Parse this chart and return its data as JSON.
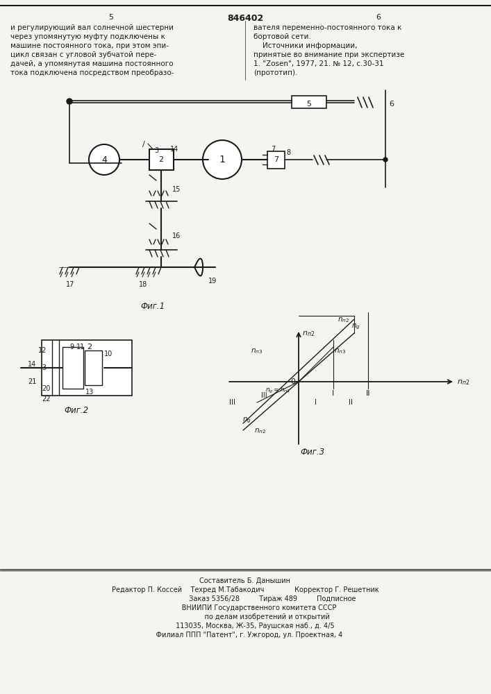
{
  "page_numbers": [
    "5",
    "6"
  ],
  "patent_number": "846402",
  "left_text": [
    "и регулирующий вал солнечной шестерни",
    "через упомянутую муфту подключены к",
    "машине постоянного тока, при этом эпи-",
    "цикл связан с угловой зубчатой пере-",
    "дачей, а упомянутая машина постоянного",
    "тока подключена посредством преобразо-"
  ],
  "right_text": [
    "вателя переменно-постоянного тока к",
    "бортовой сети.",
    "    Источники информации,",
    "принятые во внимание при экспертизе",
    "1. \"Zosen\", 1977, 21. № 12, с.30-31",
    "(прототип)."
  ],
  "fig1_caption": "Фиг.1",
  "fig2_caption": "Фиг.2",
  "fig3_caption": "Фиг.3",
  "footer_lines": [
    "Составитель Б. Данышин",
    "Редактор П. Коссей    Техред М.Табакодич              Корректор Г. Решетник",
    "                         Заказ 5356/28         Тираж 489         Подписное",
    "             ВНИИПИ Государственного комитета СССР",
    "                    по делам изобретений и открытий",
    "         113035, Москва, Ж-35, Раушская наб., д. 4/5",
    "    Филиал ППП \"Патент\", г. Ужгород, ул. Проектная, 4"
  ],
  "bg_color": "#f5f5f0",
  "text_color": "#1a1a1a",
  "line_color": "#1a1a1a"
}
